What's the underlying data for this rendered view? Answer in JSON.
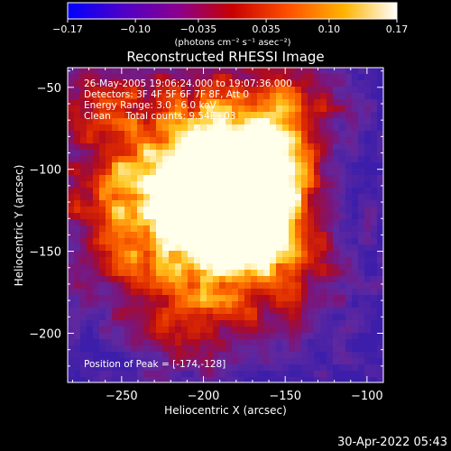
{
  "colorbar": {
    "ticks": [
      "-0.17",
      "-0.10",
      "-0.035",
      "0.035",
      "0.10",
      "0.17"
    ],
    "tick_values": [
      -0.17,
      -0.1,
      -0.035,
      0.035,
      0.1,
      0.17
    ],
    "range": [
      -0.17,
      0.17
    ],
    "unit_label": "(photons cm⁻² s⁻¹ asec⁻²)",
    "colors": [
      "#0000ff",
      "#5000c8",
      "#8c008c",
      "#c80000",
      "#ff5000",
      "#ffb400",
      "#ffffff"
    ]
  },
  "chart_data": {
    "type": "heatmap",
    "title": "Reconstructed RHESSI Image",
    "xlabel": "Heliocentric X (arcsec)",
    "ylabel": "Heliocentric Y (arcsec)",
    "xlim": [
      -283,
      -90
    ],
    "ylim": [
      -230,
      -38
    ],
    "xticks": [
      -250,
      -200,
      -150,
      -100
    ],
    "xtick_labels": [
      "-250",
      "-200",
      "-150",
      "-100"
    ],
    "yticks": [
      -50,
      -100,
      -150,
      -200
    ],
    "ytick_labels": [
      "-50",
      "-100",
      "-150",
      "-200"
    ],
    "peak": [
      -174,
      -128
    ],
    "colorscale": "RHESSI blue-purple-red-yellow-white",
    "value_range": [
      -0.17,
      0.17
    ],
    "annotations": [
      "26-May-2005 19:06:24.000 to 19:07:36.000",
      "Detectors: 3F 4F 5F 6F 7F 8F, Att 0",
      "Energy Range: 3.0 - 6.0 keV",
      "Clean     Total counts: 9.54E+03"
    ],
    "peak_label": "Position of Peak = [-174,-128]"
  },
  "footer": {
    "timestamp": "30-Apr-2022 05:43"
  }
}
